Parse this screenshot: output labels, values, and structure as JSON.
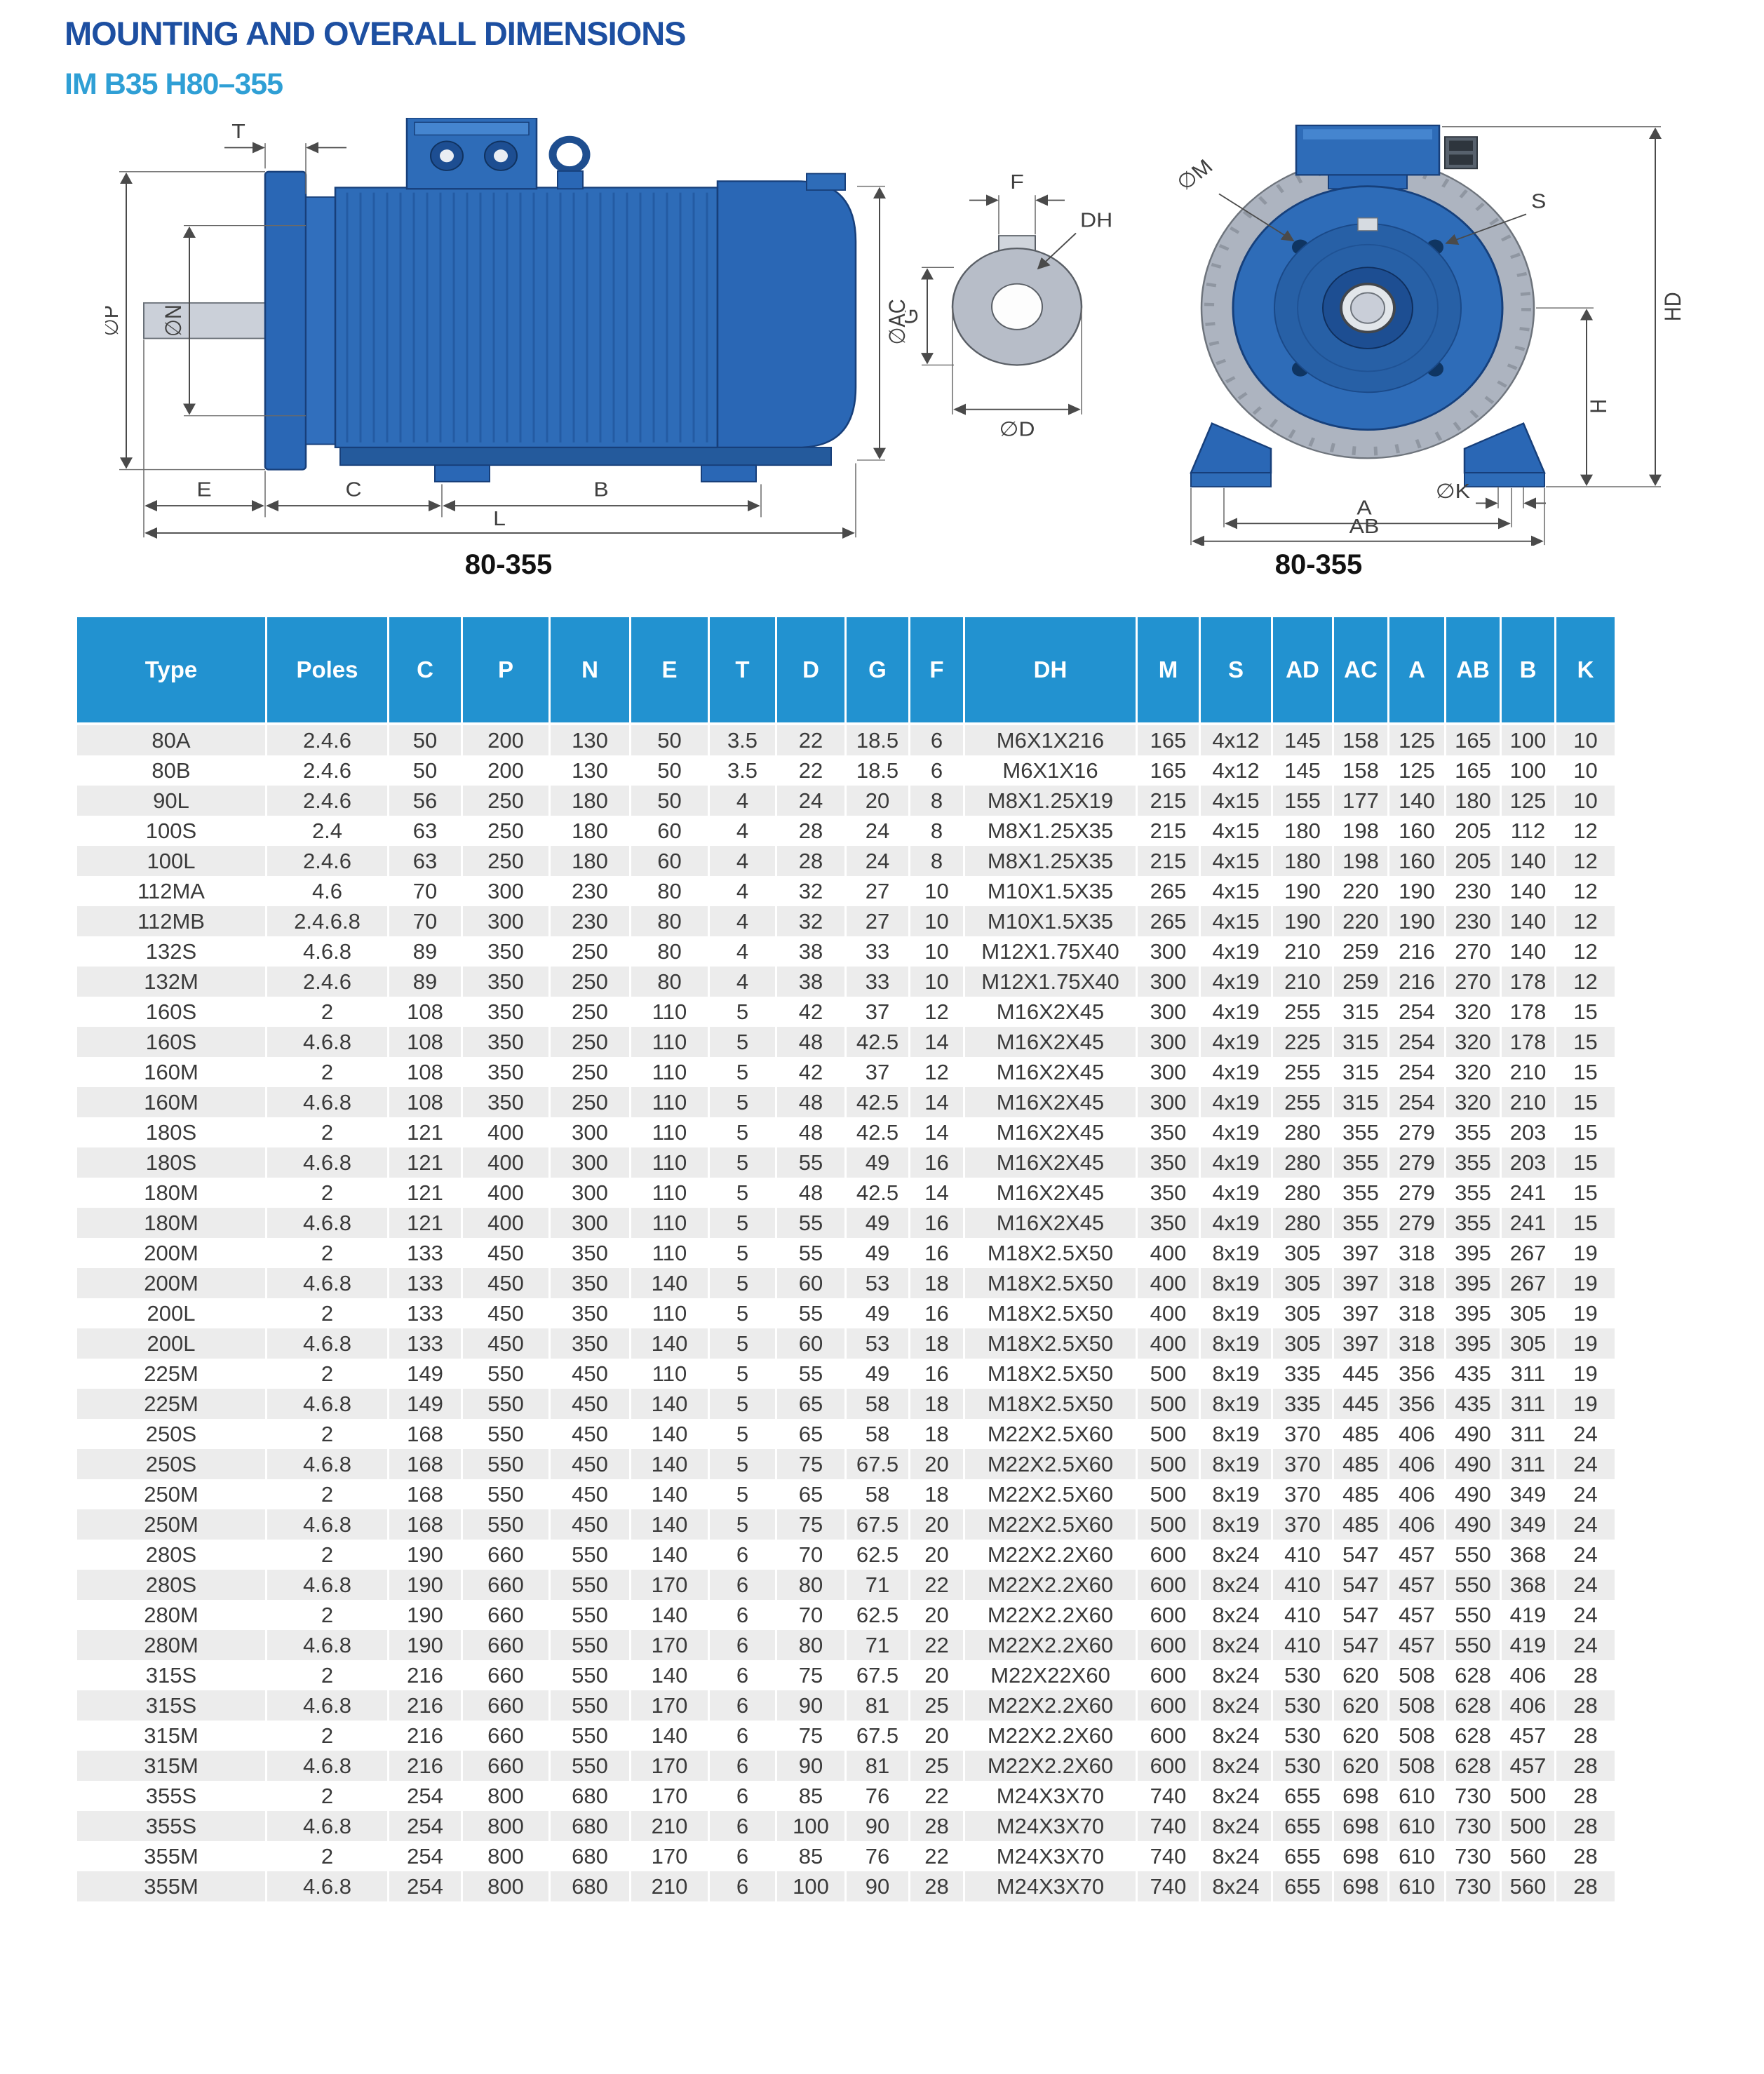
{
  "page": {
    "title": "MOUNTING AND OVERALL DIMENSIONS",
    "subtitle": "IM B35  H80–355"
  },
  "drawings": {
    "side_view": {
      "caption": "80-355",
      "labels": {
        "t": "T",
        "p": "∅P",
        "n": "∅N",
        "ac": "∅AC",
        "e": "E",
        "c": "C",
        "b": "B",
        "l": "L"
      }
    },
    "shaft_detail": {
      "labels": {
        "f": "F",
        "dh": "DH",
        "g": "G",
        "d": "∅D"
      }
    },
    "front_view": {
      "caption": "80-355",
      "labels": {
        "m": "∅M",
        "s": "S",
        "hd": "HD",
        "h": "H",
        "k": "∅K",
        "a": "A",
        "ab": "AB"
      }
    }
  },
  "colors": {
    "title_blue": "#1d4fa1",
    "subtitle_blue": "#2f9fd5",
    "table_header_bg": "#2292d0",
    "row_alt_gray": "#ececec",
    "motor_blue": "#2e6cb8",
    "fan_cover_gray": "#adb4c0"
  },
  "table": {
    "columns": [
      "Type",
      "Poles",
      "C",
      "P",
      "N",
      "E",
      "T",
      "D",
      "G",
      "F",
      "DH",
      "M",
      "S",
      "AD",
      "AC",
      "A",
      "AB",
      "B",
      "K"
    ],
    "rows": [
      [
        "80A",
        "2.4.6",
        "50",
        "200",
        "130",
        "50",
        "3.5",
        "22",
        "18.5",
        "6",
        "M6X1X216",
        "165",
        "4x12",
        "145",
        "158",
        "125",
        "165",
        "100",
        "10"
      ],
      [
        "80B",
        "2.4.6",
        "50",
        "200",
        "130",
        "50",
        "3.5",
        "22",
        "18.5",
        "6",
        "M6X1X16",
        "165",
        "4x12",
        "145",
        "158",
        "125",
        "165",
        "100",
        "10"
      ],
      [
        "90L",
        "2.4.6",
        "56",
        "250",
        "180",
        "50",
        "4",
        "24",
        "20",
        "8",
        "M8X1.25X19",
        "215",
        "4x15",
        "155",
        "177",
        "140",
        "180",
        "125",
        "10"
      ],
      [
        "100S",
        "2.4",
        "63",
        "250",
        "180",
        "60",
        "4",
        "28",
        "24",
        "8",
        "M8X1.25X35",
        "215",
        "4x15",
        "180",
        "198",
        "160",
        "205",
        "112",
        "12"
      ],
      [
        "100L",
        "2.4.6",
        "63",
        "250",
        "180",
        "60",
        "4",
        "28",
        "24",
        "8",
        "M8X1.25X35",
        "215",
        "4x15",
        "180",
        "198",
        "160",
        "205",
        "140",
        "12"
      ],
      [
        "112MA",
        "4.6",
        "70",
        "300",
        "230",
        "80",
        "4",
        "32",
        "27",
        "10",
        "M10X1.5X35",
        "265",
        "4x15",
        "190",
        "220",
        "190",
        "230",
        "140",
        "12"
      ],
      [
        "112MB",
        "2.4.6.8",
        "70",
        "300",
        "230",
        "80",
        "4",
        "32",
        "27",
        "10",
        "M10X1.5X35",
        "265",
        "4x15",
        "190",
        "220",
        "190",
        "230",
        "140",
        "12"
      ],
      [
        "132S",
        "4.6.8",
        "89",
        "350",
        "250",
        "80",
        "4",
        "38",
        "33",
        "10",
        "M12X1.75X40",
        "300",
        "4x19",
        "210",
        "259",
        "216",
        "270",
        "140",
        "12"
      ],
      [
        "132M",
        "2.4.6",
        "89",
        "350",
        "250",
        "80",
        "4",
        "38",
        "33",
        "10",
        "M12X1.75X40",
        "300",
        "4x19",
        "210",
        "259",
        "216",
        "270",
        "178",
        "12"
      ],
      [
        "160S",
        "2",
        "108",
        "350",
        "250",
        "110",
        "5",
        "42",
        "37",
        "12",
        "M16X2X45",
        "300",
        "4x19",
        "255",
        "315",
        "254",
        "320",
        "178",
        "15"
      ],
      [
        "160S",
        "4.6.8",
        "108",
        "350",
        "250",
        "110",
        "5",
        "48",
        "42.5",
        "14",
        "M16X2X45",
        "300",
        "4x19",
        "225",
        "315",
        "254",
        "320",
        "178",
        "15"
      ],
      [
        "160M",
        "2",
        "108",
        "350",
        "250",
        "110",
        "5",
        "42",
        "37",
        "12",
        "M16X2X45",
        "300",
        "4x19",
        "255",
        "315",
        "254",
        "320",
        "210",
        "15"
      ],
      [
        "160M",
        "4.6.8",
        "108",
        "350",
        "250",
        "110",
        "5",
        "48",
        "42.5",
        "14",
        "M16X2X45",
        "300",
        "4x19",
        "255",
        "315",
        "254",
        "320",
        "210",
        "15"
      ],
      [
        "180S",
        "2",
        "121",
        "400",
        "300",
        "110",
        "5",
        "48",
        "42.5",
        "14",
        "M16X2X45",
        "350",
        "4x19",
        "280",
        "355",
        "279",
        "355",
        "203",
        "15"
      ],
      [
        "180S",
        "4.6.8",
        "121",
        "400",
        "300",
        "110",
        "5",
        "55",
        "49",
        "16",
        "M16X2X45",
        "350",
        "4x19",
        "280",
        "355",
        "279",
        "355",
        "203",
        "15"
      ],
      [
        "180M",
        "2",
        "121",
        "400",
        "300",
        "110",
        "5",
        "48",
        "42.5",
        "14",
        "M16X2X45",
        "350",
        "4x19",
        "280",
        "355",
        "279",
        "355",
        "241",
        "15"
      ],
      [
        "180M",
        "4.6.8",
        "121",
        "400",
        "300",
        "110",
        "5",
        "55",
        "49",
        "16",
        "M16X2X45",
        "350",
        "4x19",
        "280",
        "355",
        "279",
        "355",
        "241",
        "15"
      ],
      [
        "200M",
        "2",
        "133",
        "450",
        "350",
        "110",
        "5",
        "55",
        "49",
        "16",
        "M18X2.5X50",
        "400",
        "8x19",
        "305",
        "397",
        "318",
        "395",
        "267",
        "19"
      ],
      [
        "200M",
        "4.6.8",
        "133",
        "450",
        "350",
        "140",
        "5",
        "60",
        "53",
        "18",
        "M18X2.5X50",
        "400",
        "8x19",
        "305",
        "397",
        "318",
        "395",
        "267",
        "19"
      ],
      [
        "200L",
        "2",
        "133",
        "450",
        "350",
        "110",
        "5",
        "55",
        "49",
        "16",
        "M18X2.5X50",
        "400",
        "8x19",
        "305",
        "397",
        "318",
        "395",
        "305",
        "19"
      ],
      [
        "200L",
        "4.6.8",
        "133",
        "450",
        "350",
        "140",
        "5",
        "60",
        "53",
        "18",
        "M18X2.5X50",
        "400",
        "8x19",
        "305",
        "397",
        "318",
        "395",
        "305",
        "19"
      ],
      [
        "225M",
        "2",
        "149",
        "550",
        "450",
        "110",
        "5",
        "55",
        "49",
        "16",
        "M18X2.5X50",
        "500",
        "8x19",
        "335",
        "445",
        "356",
        "435",
        "311",
        "19"
      ],
      [
        "225M",
        "4.6.8",
        "149",
        "550",
        "450",
        "140",
        "5",
        "65",
        "58",
        "18",
        "M18X2.5X50",
        "500",
        "8x19",
        "335",
        "445",
        "356",
        "435",
        "311",
        "19"
      ],
      [
        "250S",
        "2",
        "168",
        "550",
        "450",
        "140",
        "5",
        "65",
        "58",
        "18",
        "M22X2.5X60",
        "500",
        "8x19",
        "370",
        "485",
        "406",
        "490",
        "311",
        "24"
      ],
      [
        "250S",
        "4.6.8",
        "168",
        "550",
        "450",
        "140",
        "5",
        "75",
        "67.5",
        "20",
        "M22X2.5X60",
        "500",
        "8x19",
        "370",
        "485",
        "406",
        "490",
        "311",
        "24"
      ],
      [
        "250M",
        "2",
        "168",
        "550",
        "450",
        "140",
        "5",
        "65",
        "58",
        "18",
        "M22X2.5X60",
        "500",
        "8x19",
        "370",
        "485",
        "406",
        "490",
        "349",
        "24"
      ],
      [
        "250M",
        "4.6.8",
        "168",
        "550",
        "450",
        "140",
        "5",
        "75",
        "67.5",
        "20",
        "M22X2.5X60",
        "500",
        "8x19",
        "370",
        "485",
        "406",
        "490",
        "349",
        "24"
      ],
      [
        "280S",
        "2",
        "190",
        "660",
        "550",
        "140",
        "6",
        "70",
        "62.5",
        "20",
        "M22X2.2X60",
        "600",
        "8x24",
        "410",
        "547",
        "457",
        "550",
        "368",
        "24"
      ],
      [
        "280S",
        "4.6.8",
        "190",
        "660",
        "550",
        "170",
        "6",
        "80",
        "71",
        "22",
        "M22X2.2X60",
        "600",
        "8x24",
        "410",
        "547",
        "457",
        "550",
        "368",
        "24"
      ],
      [
        "280M",
        "2",
        "190",
        "660",
        "550",
        "140",
        "6",
        "70",
        "62.5",
        "20",
        "M22X2.2X60",
        "600",
        "8x24",
        "410",
        "547",
        "457",
        "550",
        "419",
        "24"
      ],
      [
        "280M",
        "4.6.8",
        "190",
        "660",
        "550",
        "170",
        "6",
        "80",
        "71",
        "22",
        "M22X2.2X60",
        "600",
        "8x24",
        "410",
        "547",
        "457",
        "550",
        "419",
        "24"
      ],
      [
        "315S",
        "2",
        "216",
        "660",
        "550",
        "140",
        "6",
        "75",
        "67.5",
        "20",
        "M22X22X60",
        "600",
        "8x24",
        "530",
        "620",
        "508",
        "628",
        "406",
        "28"
      ],
      [
        "315S",
        "4.6.8",
        "216",
        "660",
        "550",
        "170",
        "6",
        "90",
        "81",
        "25",
        "M22X2.2X60",
        "600",
        "8x24",
        "530",
        "620",
        "508",
        "628",
        "406",
        "28"
      ],
      [
        "315M",
        "2",
        "216",
        "660",
        "550",
        "140",
        "6",
        "75",
        "67.5",
        "20",
        "M22X2.2X60",
        "600",
        "8x24",
        "530",
        "620",
        "508",
        "628",
        "457",
        "28"
      ],
      [
        "315M",
        "4.6.8",
        "216",
        "660",
        "550",
        "170",
        "6",
        "90",
        "81",
        "25",
        "M22X2.2X60",
        "600",
        "8x24",
        "530",
        "620",
        "508",
        "628",
        "457",
        "28"
      ],
      [
        "355S",
        "2",
        "254",
        "800",
        "680",
        "170",
        "6",
        "85",
        "76",
        "22",
        "M24X3X70",
        "740",
        "8x24",
        "655",
        "698",
        "610",
        "730",
        "500",
        "28"
      ],
      [
        "355S",
        "4.6.8",
        "254",
        "800",
        "680",
        "210",
        "6",
        "100",
        "90",
        "28",
        "M24X3X70",
        "740",
        "8x24",
        "655",
        "698",
        "610",
        "730",
        "500",
        "28"
      ],
      [
        "355M",
        "2",
        "254",
        "800",
        "680",
        "170",
        "6",
        "85",
        "76",
        "22",
        "M24X3X70",
        "740",
        "8x24",
        "655",
        "698",
        "610",
        "730",
        "560",
        "28"
      ],
      [
        "355M",
        "4.6.8",
        "254",
        "800",
        "680",
        "210",
        "6",
        "100",
        "90",
        "28",
        "M24X3X70",
        "740",
        "8x24",
        "655",
        "698",
        "610",
        "730",
        "560",
        "28"
      ]
    ]
  }
}
